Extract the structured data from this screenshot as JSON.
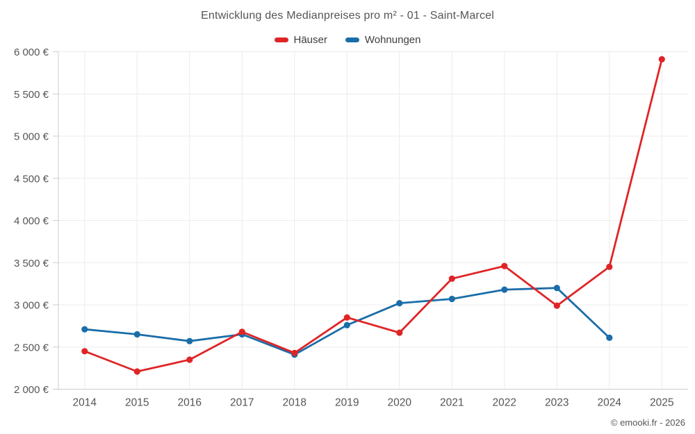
{
  "header": {
    "title": "Entwicklung des Medianpreises pro m² - 01 - Saint-Marcel"
  },
  "chart_data": {
    "type": "line",
    "title": "Entwicklung des Medianpreises pro m² - 01 - Saint-Marcel",
    "x": [
      "2014",
      "2015",
      "2016",
      "2017",
      "2018",
      "2019",
      "2020",
      "2021",
      "2022",
      "2023",
      "2024",
      "2025"
    ],
    "series": [
      {
        "id": "haeuser",
        "name": "Häuser",
        "color": "#e02426",
        "values": [
          2450,
          2210,
          2350,
          2680,
          2430,
          2850,
          2670,
          3310,
          3460,
          2990,
          3450,
          5910
        ]
      },
      {
        "id": "wohnungen",
        "name": "Wohnungen",
        "color": "#1a6da8",
        "values": [
          2710,
          2650,
          2570,
          2650,
          2410,
          2760,
          3020,
          3070,
          3180,
          3200,
          2610,
          null
        ]
      }
    ],
    "ylabel": "",
    "xlabel": "",
    "ylim": [
      2000,
      6000
    ],
    "ytick_step": 500,
    "ytick_suffix": " €",
    "grid": true,
    "legend_position": "top"
  },
  "colors": {
    "grid": "#ececec",
    "axis": "#cccccc",
    "tick_label": "#555555",
    "title": "#555555"
  },
  "footer": {
    "copyright": "© emooki.fr - 2026"
  }
}
